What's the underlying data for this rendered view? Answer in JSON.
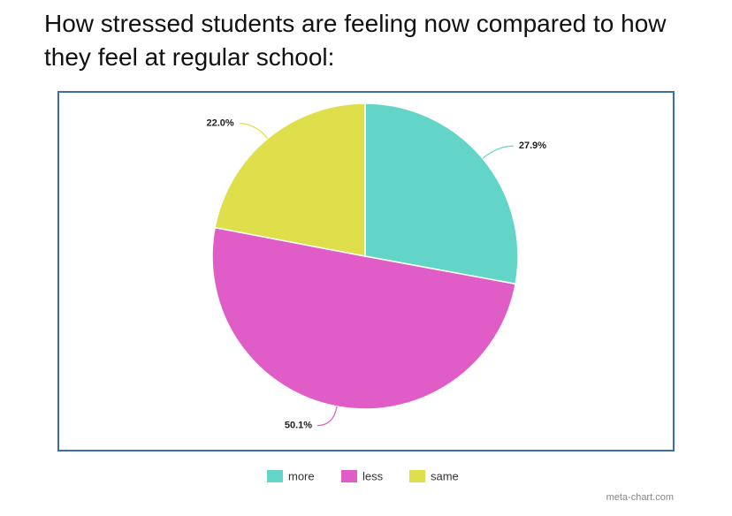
{
  "chart_data": {
    "type": "pie",
    "title": "How stressed students are feeling now compared to how they feel at regular school:",
    "categories": [
      "more",
      "less",
      "same"
    ],
    "values": [
      27.9,
      50.1,
      22.0
    ],
    "value_labels": [
      "27.9%",
      "50.1%",
      "22.0%"
    ],
    "colors": [
      "#63d5c8",
      "#e05dc8",
      "#dfdf4b"
    ],
    "legend": "bottom",
    "watermark": "meta-chart.com"
  }
}
